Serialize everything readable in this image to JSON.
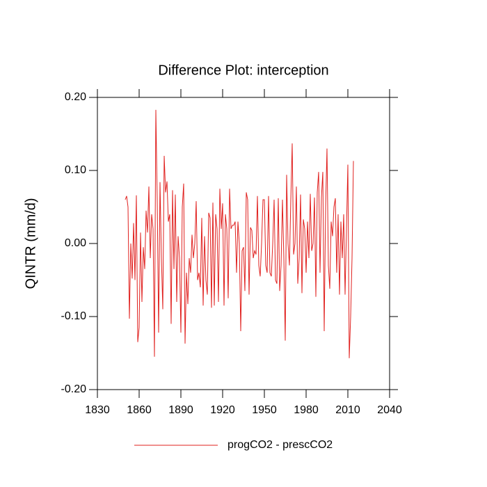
{
  "chart_data": {
    "type": "line",
    "title": "Difference Plot: interception",
    "y_label": "QINTR  (mm/d)",
    "x": [
      1850,
      1851,
      1852,
      1853,
      1854,
      1855,
      1856,
      1857,
      1858,
      1859,
      1860,
      1861,
      1862,
      1863,
      1864,
      1865,
      1866,
      1867,
      1868,
      1869,
      1870,
      1871,
      1872,
      1873,
      1874,
      1875,
      1876,
      1877,
      1878,
      1879,
      1880,
      1881,
      1882,
      1883,
      1884,
      1885,
      1886,
      1887,
      1888,
      1889,
      1890,
      1891,
      1892,
      1893,
      1894,
      1895,
      1896,
      1897,
      1898,
      1899,
      1900,
      1901,
      1902,
      1903,
      1904,
      1905,
      1906,
      1907,
      1908,
      1909,
      1910,
      1911,
      1912,
      1913,
      1914,
      1915,
      1916,
      1917,
      1918,
      1919,
      1920,
      1921,
      1922,
      1923,
      1924,
      1925,
      1926,
      1927,
      1928,
      1929,
      1930,
      1931,
      1932,
      1933,
      1934,
      1935,
      1936,
      1937,
      1938,
      1939,
      1940,
      1941,
      1942,
      1943,
      1944,
      1945,
      1946,
      1947,
      1948,
      1949,
      1950,
      1951,
      1952,
      1953,
      1954,
      1955,
      1956,
      1957,
      1958,
      1959,
      1960,
      1961,
      1962,
      1963,
      1964,
      1965,
      1966,
      1967,
      1968,
      1969,
      1970,
      1971,
      1972,
      1973,
      1974,
      1975,
      1976,
      1977,
      1978,
      1979,
      1980,
      1981,
      1982,
      1983,
      1984,
      1985,
      1986,
      1987,
      1988,
      1989,
      1990,
      1991,
      1992,
      1993,
      1994,
      1995,
      1996,
      1997,
      1998,
      1999,
      2000,
      2001,
      2002,
      2003,
      2004,
      2005,
      2006,
      2007,
      2008,
      2009,
      2010,
      2011,
      2012,
      2013,
      2014
    ],
    "series": [
      {
        "name": "progCO2 - prescCO2",
        "color": "#e0201e",
        "values": [
          0.06,
          0.065,
          0.05,
          -0.103,
          0.0,
          -0.048,
          0.028,
          -0.05,
          0.066,
          -0.135,
          -0.115,
          0.015,
          -0.08,
          -0.005,
          -0.035,
          0.045,
          0.015,
          0.078,
          -0.02,
          0.04,
          0.02,
          -0.155,
          0.183,
          0.06,
          -0.122,
          0.084,
          -0.02,
          -0.09,
          0.12,
          0.07,
          0.085,
          0.03,
          0.04,
          -0.11,
          0.073,
          -0.035,
          0.067,
          -0.08,
          0.01,
          -0.02,
          -0.122,
          0.05,
          0.082,
          -0.137,
          -0.04,
          -0.083,
          -0.02,
          -0.04,
          0.012,
          -0.02,
          0.0,
          0.058,
          -0.05,
          -0.04,
          -0.06,
          0.035,
          -0.085,
          0.01,
          -0.05,
          -0.07,
          0.042,
          0.035,
          -0.088,
          0.056,
          -0.085,
          0.04,
          0.02,
          -0.08,
          0.075,
          0.02,
          0.055,
          -0.085,
          0.04,
          0.02,
          -0.075,
          0.075,
          0.02,
          0.025,
          0.025,
          0.03,
          -0.04,
          0.03,
          0.0,
          -0.12,
          -0.01,
          -0.005,
          -0.065,
          0.07,
          0.06,
          -0.07,
          0.022,
          0.018,
          -0.02,
          -0.01,
          -0.015,
          0.065,
          -0.03,
          -0.045,
          0.0,
          0.06,
          0.06,
          -0.03,
          -0.04,
          0.065,
          -0.04,
          -0.045,
          0.0,
          0.06,
          -0.05,
          -0.055,
          0.062,
          -0.065,
          -0.03,
          0.06,
          -0.02,
          -0.133,
          0.094,
          0.0,
          -0.03,
          0.06,
          0.137,
          -0.015,
          0.0,
          0.078,
          -0.055,
          -0.02,
          0.067,
          -0.068,
          0.033,
          0.02,
          -0.04,
          0.03,
          -0.02,
          0.068,
          -0.01,
          0.0,
          0.063,
          -0.073,
          0.07,
          0.098,
          -0.04,
          0.063,
          0.098,
          -0.12,
          0.05,
          0.13,
          -0.03,
          -0.062,
          0.03,
          0.01,
          0.05,
          0.062,
          -0.04,
          0.04,
          -0.07,
          0.03,
          -0.02,
          0.04,
          -0.07,
          0.02,
          0.108,
          -0.157,
          -0.1,
          -0.02,
          0.113
        ]
      }
    ],
    "xlim": [
      1830,
      2040
    ],
    "xticks": [
      1830,
      1860,
      1890,
      1920,
      1950,
      1980,
      2010,
      2040
    ],
    "ylim": [
      -0.2,
      0.2
    ],
    "yticks": [
      {
        "value": -0.2,
        "label": "-0.20"
      },
      {
        "value": -0.1,
        "label": "-0.10"
      },
      {
        "value": 0,
        "label": "0.00"
      },
      {
        "value": 0.1,
        "label": "0.10"
      },
      {
        "value": 0.2,
        "label": "0.20"
      }
    ],
    "legend": "bottom"
  }
}
